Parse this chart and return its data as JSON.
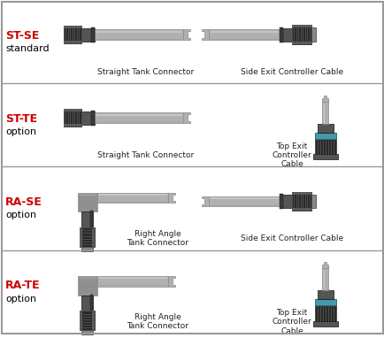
{
  "bg_color": "#ffffff",
  "border_color": "#999999",
  "row_divider_color": "#999999",
  "rows": [
    {
      "label_main": "ST-SE",
      "label_sub": "standard",
      "label_color": "#cc0000",
      "left_caption": "Straight Tank Connector",
      "right_caption": "Side Exit Controller Cable",
      "left_type": "straight_tank",
      "right_type": "side_exit"
    },
    {
      "label_main": "ST-TE",
      "label_sub": "option",
      "label_color": "#cc0000",
      "left_caption": "Straight Tank Connector",
      "right_caption": "Top Exit\nController\nCable",
      "left_type": "straight_tank",
      "right_type": "top_exit"
    },
    {
      "label_main": "RA-SE",
      "label_sub": "option",
      "label_color": "#cc0000",
      "left_caption": "Right Angle\nTank Connector",
      "right_caption": "Side Exit Controller Cable",
      "left_type": "right_angle_tank",
      "right_type": "side_exit"
    },
    {
      "label_main": "RA-TE",
      "label_sub": "option",
      "label_color": "#cc0000",
      "left_caption": "Right Angle\nTank Connector",
      "right_caption": "Top Exit\nController\nCable",
      "left_type": "right_angle_tank",
      "right_type": "top_exit"
    }
  ],
  "cable_fill": "#b0b0b0",
  "cable_dark": "#888888",
  "cable_light": "#d0d0d0",
  "knurl_dark": "#2a2a2a",
  "knurl_mid": "#444444",
  "body_dark": "#3a3a3a",
  "body_mid": "#555555",
  "body_light": "#6a6a6a",
  "gray_box": "#909090",
  "teal": "#4499aa"
}
